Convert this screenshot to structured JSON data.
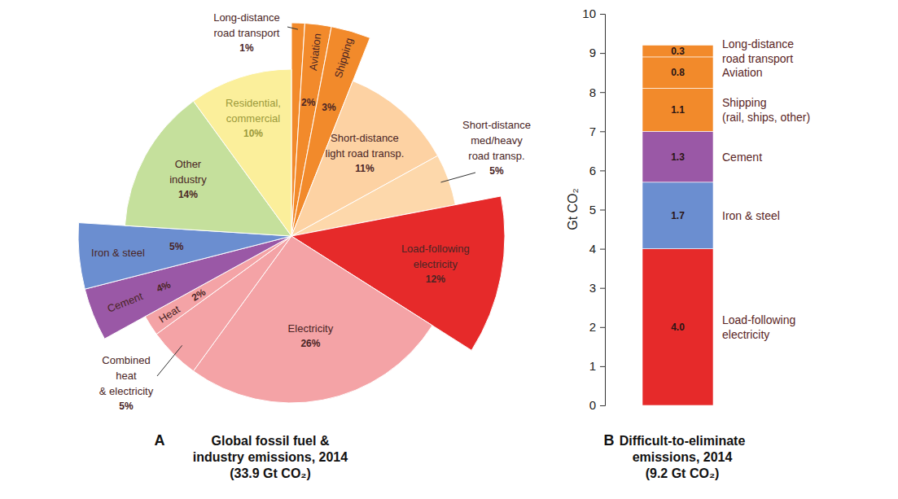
{
  "chart_data": [
    {
      "type": "pie",
      "title": "Global fossil fuel &\nindustry emissions, 2014\n(33.9 Gt CO₂)",
      "annotations": [
        "A"
      ],
      "categories": [
        "Long-distance\nroad transport",
        "Aviation",
        "Shipping",
        "Short-distance\nlight road transp.",
        "Short-distance\nmed/heavy\nroad transp.",
        "Load-following\nelectricity",
        "Electricity",
        "Combined\nheat\n& electricity",
        "Heat",
        "Cement",
        "Iron & steel",
        "Other\nindustry",
        "Residential,\ncommercial"
      ],
      "values": [
        1,
        2,
        3,
        11,
        5,
        12,
        26,
        5,
        2,
        4,
        5,
        14,
        10
      ],
      "value_labels": [
        "1%",
        "2%",
        "3%",
        "11%",
        "5%",
        "12%",
        "26%",
        "5%",
        "2%",
        "4%",
        "5%",
        "14%",
        "10%"
      ],
      "colors": [
        "#f28a2b",
        "#f28a2b",
        "#f28a2b",
        "#fdd2a3",
        "#fdd8ab",
        "#e62a2a",
        "#f4a3a6",
        "#f4a3a6",
        "#f4a3a6",
        "#9a58a6",
        "#6b8ed0",
        "#c5e09c",
        "#fbef9b"
      ],
      "data_labels": true
    },
    {
      "type": "bar",
      "title": "Difficult-to-eliminate\nemissions, 2014\n(9.2 Gt CO₂)",
      "annotations": [
        "B"
      ],
      "y_label": "Gt CO₂",
      "categories": [
        null
      ],
      "stacked": true,
      "data_labels": true,
      "legend": "right",
      "series": [
        {
          "name": "Load-following\nelectricity",
          "color": "#e62a2a",
          "values": [
            4.0
          ],
          "value_labels": [
            "4.0"
          ]
        },
        {
          "name": "Iron & steel",
          "color": "#6b8ed0",
          "values": [
            1.7
          ],
          "value_labels": [
            "1.7"
          ]
        },
        {
          "name": "Cement",
          "color": "#9a58a6",
          "values": [
            1.3
          ],
          "value_labels": [
            "1.3"
          ]
        },
        {
          "name": "Shipping\n(rail, ships, other)",
          "color": "#f28a2b",
          "values": [
            1.1
          ],
          "value_labels": [
            "1.1"
          ]
        },
        {
          "name": "Aviation",
          "color": "#f28a2b",
          "values": [
            0.8
          ],
          "value_labels": [
            "0.8"
          ]
        },
        {
          "name": "Long-distance\nroad transport",
          "color": "#f28a2b",
          "values": [
            0.3
          ],
          "value_labels": [
            "0.3"
          ]
        }
      ],
      "ylim": [
        0,
        10
      ],
      "yticks": [
        0,
        1,
        2,
        3,
        4,
        5,
        6,
        7,
        8,
        9,
        10
      ]
    }
  ]
}
